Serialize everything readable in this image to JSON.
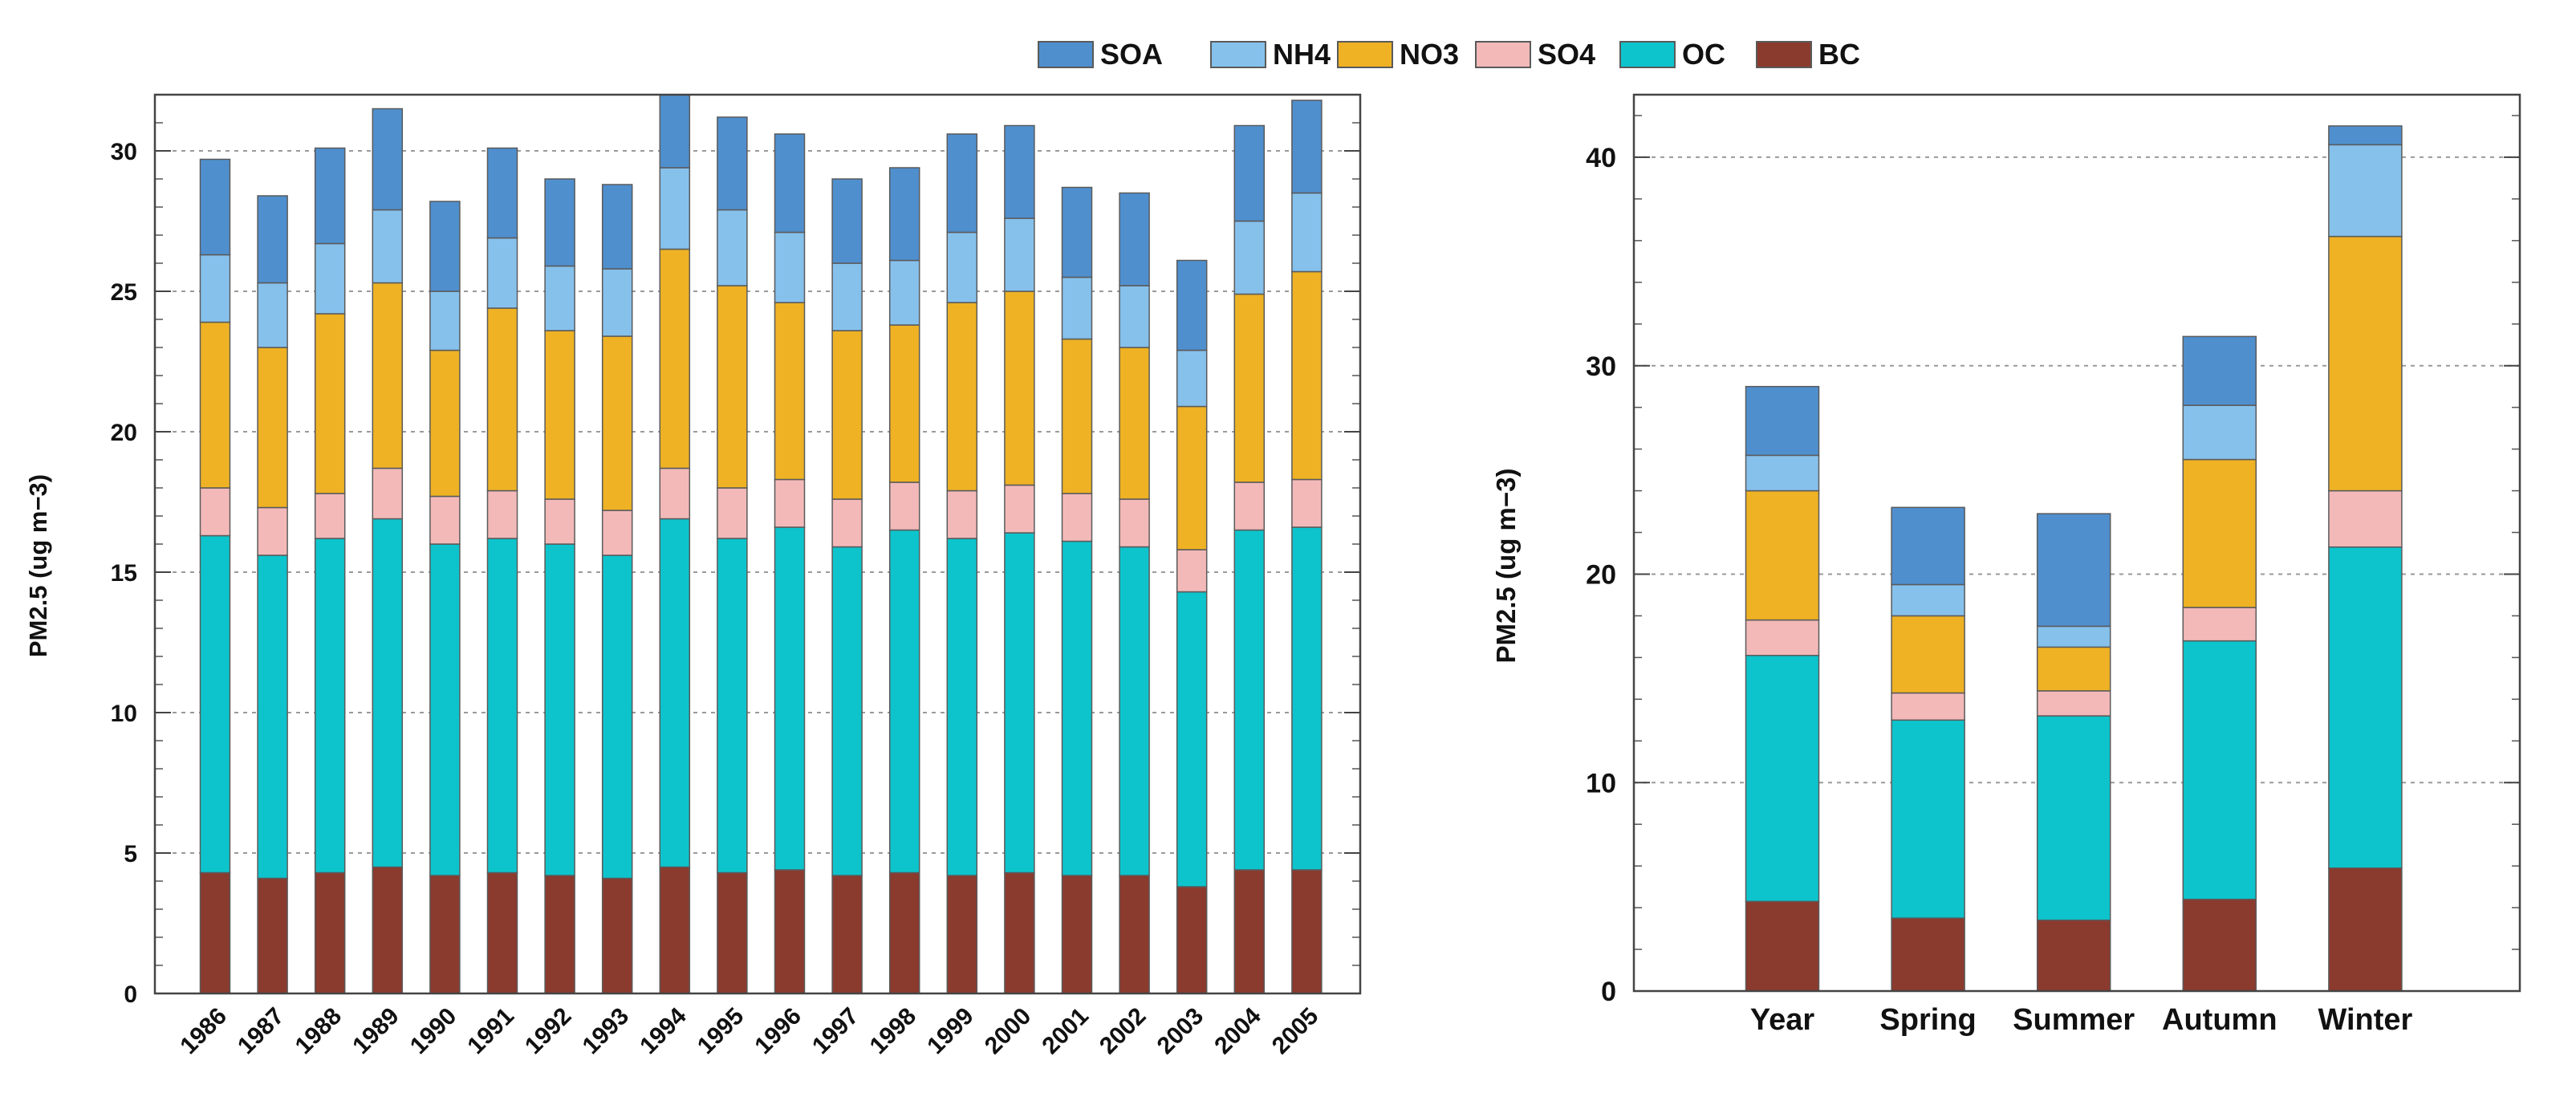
{
  "legend": [
    {
      "name": "SOA",
      "color": "#4f8fce"
    },
    {
      "name": "NH4",
      "color": "#86c1ec"
    },
    {
      "name": "NO3",
      "color": "#eeb224"
    },
    {
      "name": "SO4",
      "color": "#f3b9b9"
    },
    {
      "name": "OC",
      "color": "#0dc4cc"
    },
    {
      "name": "BC",
      "color": "#8b3a2e"
    }
  ],
  "chart_data": [
    {
      "type": "bar",
      "stacked": true,
      "title": "",
      "xlabel": "",
      "ylabel": "PM2.5 (ug m−3)",
      "ylim": [
        0,
        32
      ],
      "yticks": [
        0,
        5,
        10,
        15,
        20,
        25,
        30
      ],
      "ytick_labels": [
        "0",
        "5",
        "10",
        "15",
        "20",
        "25",
        "30"
      ],
      "grid": true,
      "legend_position": "top",
      "categories": [
        "1986",
        "1987",
        "1988",
        "1989",
        "1990",
        "1991",
        "1992",
        "1993",
        "1994",
        "1995",
        "1996",
        "1997",
        "1998",
        "1999",
        "2000",
        "2001",
        "2002",
        "2003",
        "2004",
        "2005"
      ],
      "series": [
        {
          "name": "BC",
          "values": [
            4.3,
            4.1,
            4.3,
            4.5,
            4.2,
            4.3,
            4.2,
            4.1,
            4.5,
            4.3,
            4.4,
            4.2,
            4.3,
            4.2,
            4.3,
            4.2,
            4.2,
            3.8,
            4.4,
            4.4
          ]
        },
        {
          "name": "OC",
          "values": [
            12.0,
            11.5,
            11.9,
            12.4,
            11.8,
            11.9,
            11.8,
            11.5,
            12.4,
            11.9,
            12.2,
            11.7,
            12.2,
            12.0,
            12.1,
            11.9,
            11.7,
            10.5,
            12.1,
            12.2
          ]
        },
        {
          "name": "SO4",
          "values": [
            1.7,
            1.7,
            1.6,
            1.8,
            1.7,
            1.7,
            1.6,
            1.6,
            1.8,
            1.8,
            1.7,
            1.7,
            1.7,
            1.7,
            1.7,
            1.7,
            1.7,
            1.5,
            1.7,
            1.7
          ]
        },
        {
          "name": "NO3",
          "values": [
            5.9,
            5.7,
            6.4,
            6.6,
            5.2,
            6.5,
            6.0,
            6.2,
            7.8,
            7.2,
            6.3,
            6.0,
            5.6,
            6.7,
            6.9,
            5.5,
            5.4,
            5.1,
            6.7,
            7.4
          ]
        },
        {
          "name": "NH4",
          "values": [
            2.4,
            2.3,
            2.5,
            2.6,
            2.1,
            2.5,
            2.3,
            2.4,
            2.9,
            2.7,
            2.5,
            2.4,
            2.3,
            2.5,
            2.6,
            2.2,
            2.2,
            2.0,
            2.6,
            2.8
          ]
        },
        {
          "name": "SOA",
          "values": [
            3.4,
            3.1,
            3.4,
            3.6,
            3.2,
            3.2,
            3.1,
            3.0,
            2.6,
            3.3,
            3.5,
            3.0,
            3.3,
            3.5,
            3.3,
            3.2,
            3.3,
            3.2,
            3.4,
            3.3
          ]
        }
      ]
    },
    {
      "type": "bar",
      "stacked": true,
      "title": "",
      "xlabel": "",
      "ylabel": "PM2.5 (ug m−3)",
      "ylim": [
        0,
        43
      ],
      "yticks": [
        0,
        10,
        20,
        30,
        40
      ],
      "ytick_labels": [
        "0",
        "10",
        "20",
        "30",
        "40"
      ],
      "grid": true,
      "categories": [
        "Year",
        "Spring",
        "Summer",
        "Autumn",
        "Winter"
      ],
      "series": [
        {
          "name": "BC",
          "values": [
            4.3,
            3.5,
            3.4,
            4.4,
            5.9
          ]
        },
        {
          "name": "OC",
          "values": [
            11.8,
            9.5,
            9.8,
            12.4,
            15.4
          ]
        },
        {
          "name": "SO4",
          "values": [
            1.7,
            1.3,
            1.2,
            1.6,
            2.7
          ]
        },
        {
          "name": "NO3",
          "values": [
            6.2,
            3.7,
            2.1,
            7.1,
            12.2
          ]
        },
        {
          "name": "NH4",
          "values": [
            1.7,
            1.5,
            1.0,
            2.6,
            4.4
          ]
        },
        {
          "name": "SOA",
          "values": [
            3.3,
            3.7,
            5.4,
            3.3,
            0.9
          ]
        }
      ]
    }
  ]
}
